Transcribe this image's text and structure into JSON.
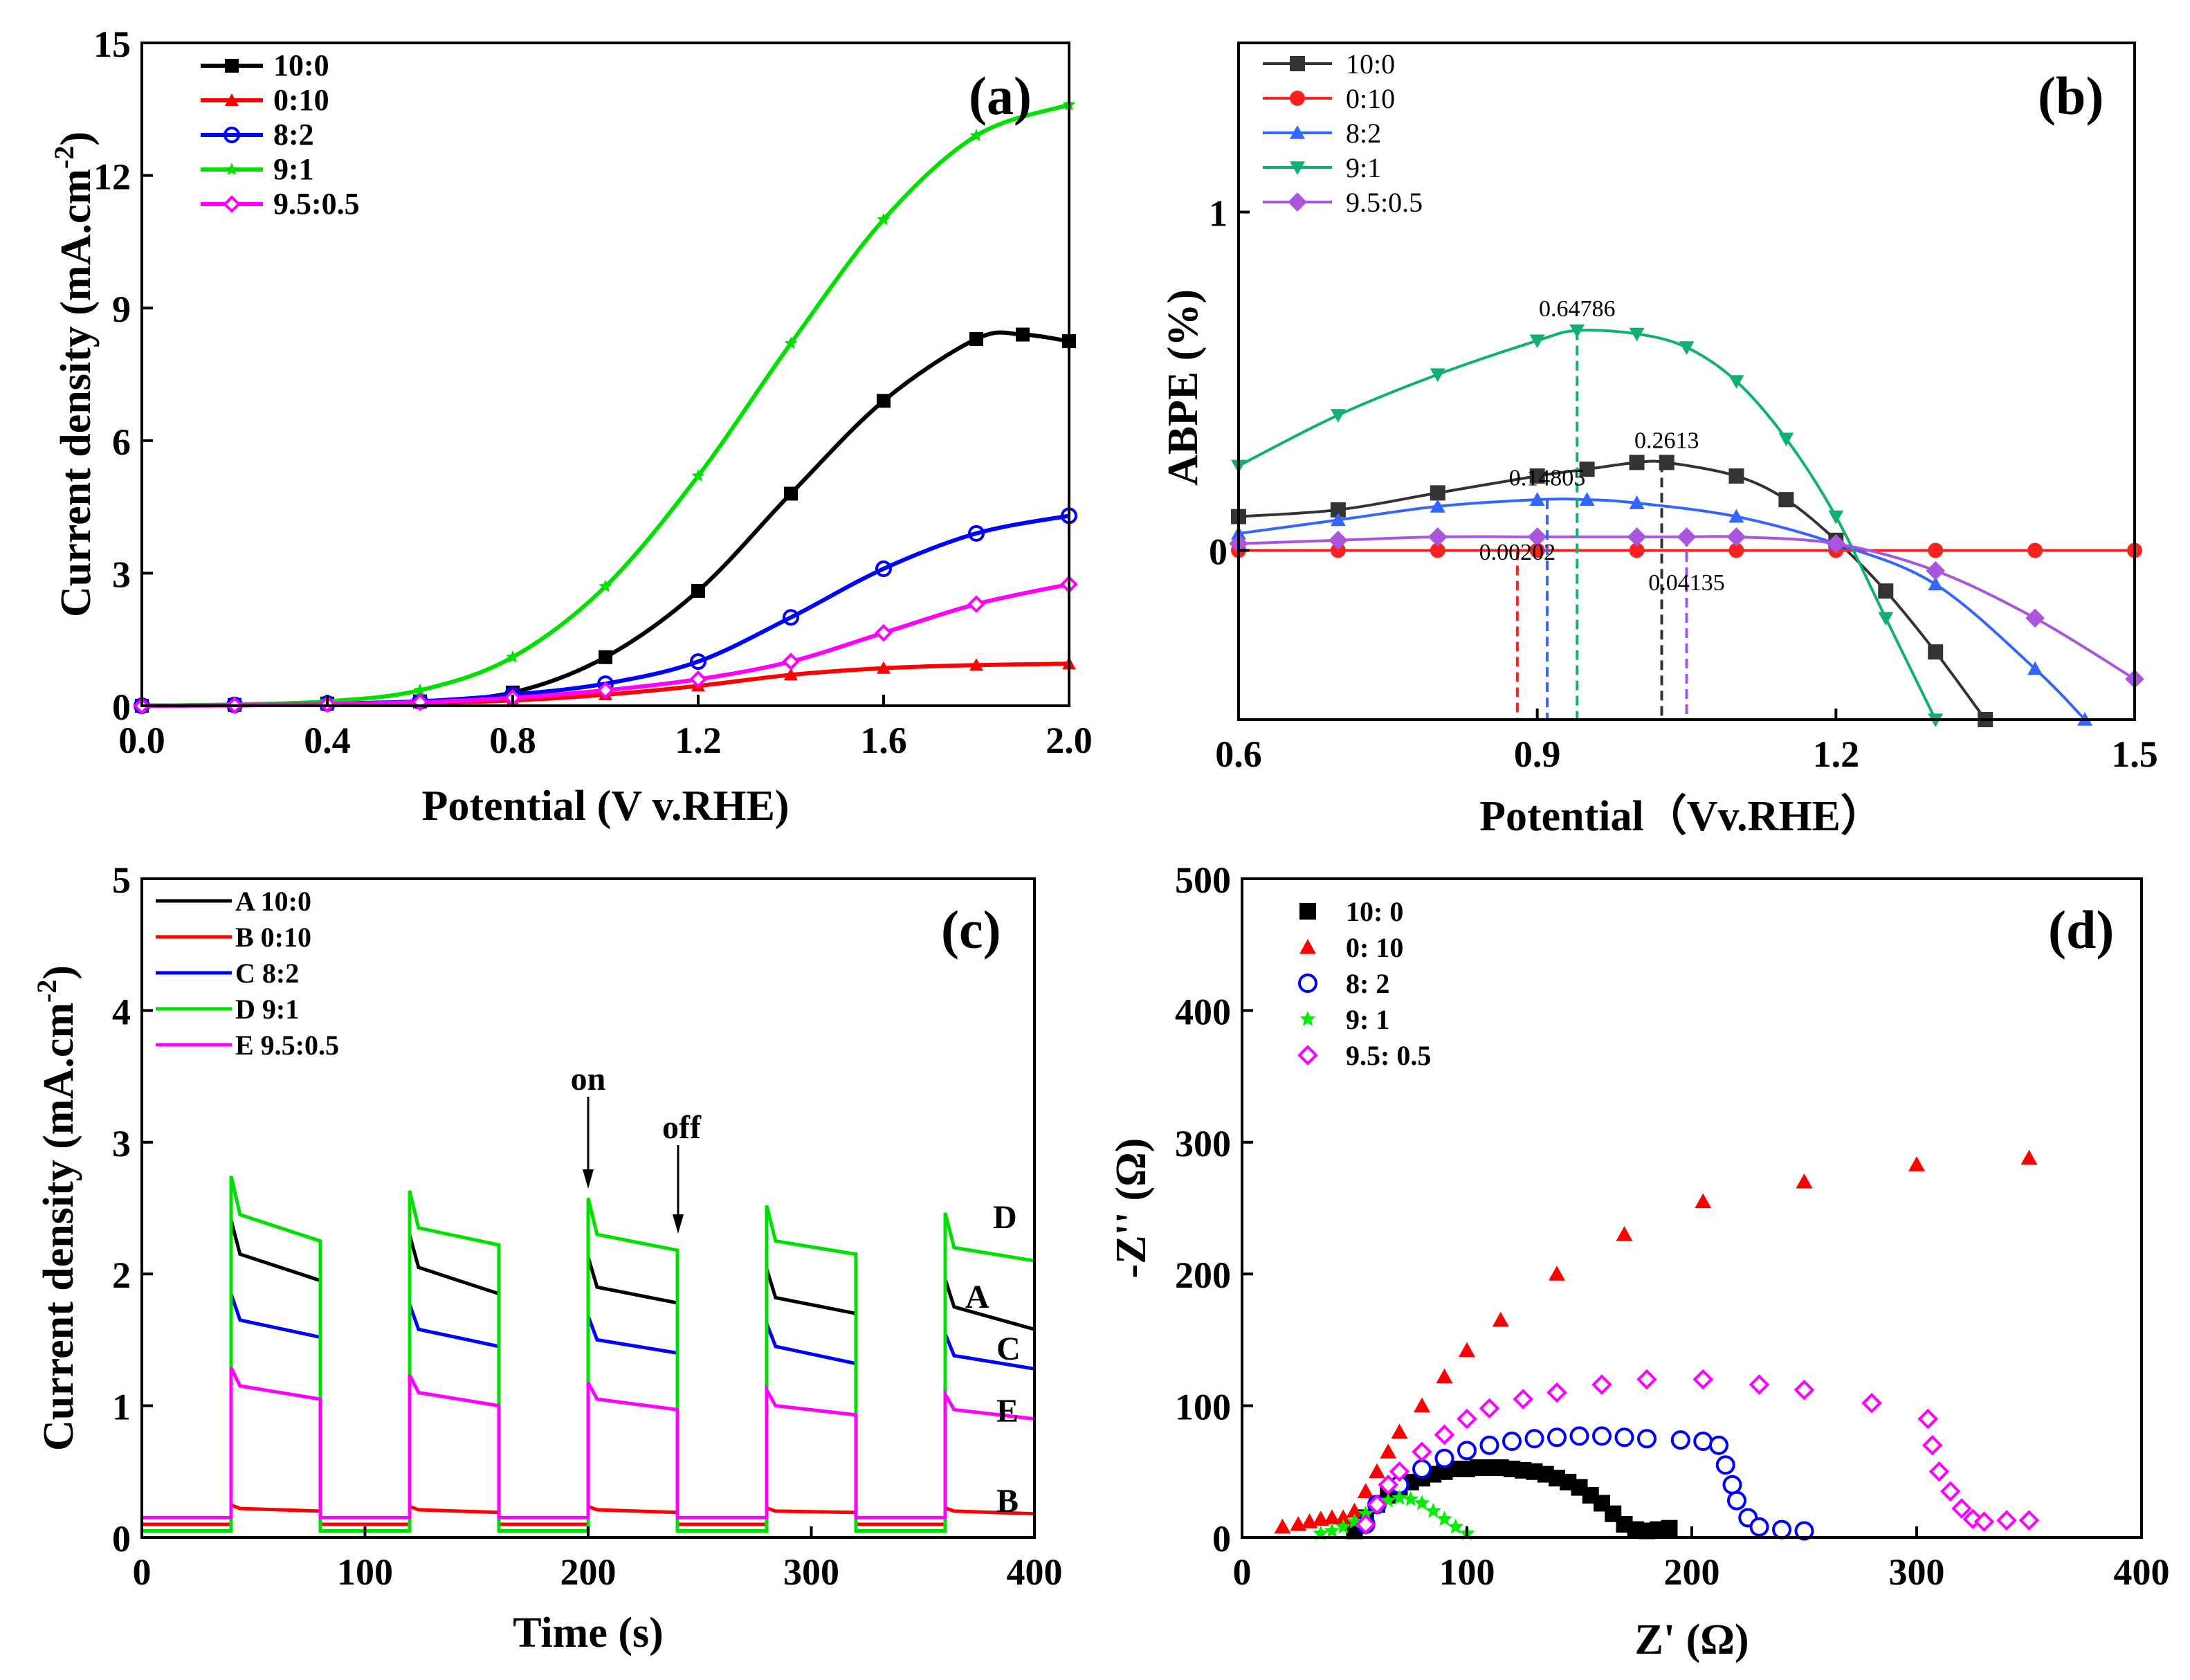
{
  "chart_data": [
    {
      "type": "line",
      "panel": "(a)",
      "xlabel": "Potential (V v.RHE)",
      "ylabel": "Current density (mA.cm",
      "ylabel_sup": "-2",
      "ylabel_close": ")",
      "xlim": [
        0,
        2.0
      ],
      "ylim": [
        0,
        15
      ],
      "xticks": [
        "0.0",
        "0.4",
        "0.8",
        "1.2",
        "1.6",
        "2.0"
      ],
      "yticks": [
        "0",
        "3",
        "6",
        "9",
        "12",
        "15"
      ],
      "series": [
        {
          "name": "10:0",
          "color": "#000000",
          "marker": "square",
          "x": [
            0,
            0.2,
            0.4,
            0.6,
            0.8,
            1.0,
            1.2,
            1.4,
            1.6,
            1.8,
            1.9,
            2.0
          ],
          "y": [
            0,
            0.02,
            0.05,
            0.1,
            0.3,
            1.1,
            2.6,
            4.8,
            6.9,
            8.3,
            8.4,
            8.25
          ]
        },
        {
          "name": "0:10",
          "color": "#ff0000",
          "marker": "triangle",
          "x": [
            0,
            0.2,
            0.4,
            0.6,
            0.8,
            1.0,
            1.2,
            1.4,
            1.6,
            1.8,
            2.0
          ],
          "y": [
            0,
            0.01,
            0.03,
            0.06,
            0.12,
            0.25,
            0.45,
            0.7,
            0.85,
            0.92,
            0.95
          ]
        },
        {
          "name": "8:2",
          "color": "#0000ff",
          "marker": "circle-open",
          "x": [
            0,
            0.2,
            0.4,
            0.6,
            0.8,
            1.0,
            1.2,
            1.4,
            1.6,
            1.8,
            2.0
          ],
          "y": [
            0,
            0.02,
            0.05,
            0.1,
            0.25,
            0.5,
            1.0,
            2.0,
            3.1,
            3.9,
            4.3
          ]
        },
        {
          "name": "9:1",
          "color": "#00e000",
          "marker": "star",
          "x": [
            0,
            0.2,
            0.4,
            0.6,
            0.8,
            1.0,
            1.2,
            1.4,
            1.6,
            1.8,
            2.0
          ],
          "y": [
            0,
            0.03,
            0.1,
            0.35,
            1.1,
            2.7,
            5.2,
            8.2,
            11.0,
            12.9,
            13.6
          ]
        },
        {
          "name": "9.5:0.5",
          "color": "#ff00ff",
          "marker": "diamond-half",
          "x": [
            0,
            0.2,
            0.4,
            0.6,
            0.8,
            1.0,
            1.2,
            1.4,
            1.6,
            1.8,
            2.0
          ],
          "y": [
            0,
            0.01,
            0.04,
            0.08,
            0.18,
            0.35,
            0.6,
            1.0,
            1.65,
            2.3,
            2.75
          ]
        }
      ]
    },
    {
      "type": "line",
      "panel": "(b)",
      "xlabel": "Potential（Vv.RHE）",
      "ylabel": "ABPE (%)",
      "xlim": [
        0.6,
        1.5
      ],
      "ylim": [
        -0.5,
        1.5
      ],
      "xticks": [
        "0.6",
        "0.9",
        "1.2",
        "1.5"
      ],
      "yticks": [
        "0",
        "1"
      ],
      "annotations": [
        {
          "text": "0.64786",
          "x": 0.94,
          "y": 0.66
        },
        {
          "text": "0.2613",
          "x": 1.03,
          "y": 0.27
        },
        {
          "text": "0.14805",
          "x": 0.91,
          "y": 0.16
        },
        {
          "text": "0.00202",
          "x": 0.88,
          "y": -0.06
        },
        {
          "text": "0.04135",
          "x": 1.05,
          "y": -0.15
        }
      ],
      "series": [
        {
          "name": "10:0",
          "color": "#333333",
          "marker": "square",
          "x": [
            0.6,
            0.7,
            0.8,
            0.9,
            0.95,
            1.0,
            1.03,
            1.1,
            1.15,
            1.2,
            1.25,
            1.3,
            1.35
          ],
          "y": [
            0.1,
            0.12,
            0.17,
            0.22,
            0.24,
            0.26,
            0.26,
            0.22,
            0.15,
            0.03,
            -0.12,
            -0.3,
            -0.5
          ]
        },
        {
          "name": "0:10",
          "color": "#ff2020",
          "marker": "circle",
          "x": [
            0.6,
            0.7,
            0.8,
            0.9,
            1.0,
            1.1,
            1.2,
            1.3,
            1.4,
            1.5
          ],
          "y": [
            0,
            0,
            0,
            0,
            0,
            0,
            0,
            0,
            0,
            0
          ]
        },
        {
          "name": "8:2",
          "color": "#3366ff",
          "marker": "triangle",
          "x": [
            0.6,
            0.7,
            0.8,
            0.9,
            0.95,
            1.0,
            1.1,
            1.2,
            1.3,
            1.4,
            1.45
          ],
          "y": [
            0.05,
            0.09,
            0.13,
            0.15,
            0.15,
            0.14,
            0.1,
            0.02,
            -0.1,
            -0.35,
            -0.5
          ]
        },
        {
          "name": "9:1",
          "color": "#10b070",
          "marker": "triangle-down",
          "x": [
            0.6,
            0.7,
            0.8,
            0.9,
            0.94,
            1.0,
            1.05,
            1.1,
            1.15,
            1.2,
            1.25,
            1.3
          ],
          "y": [
            0.25,
            0.4,
            0.52,
            0.62,
            0.65,
            0.64,
            0.6,
            0.5,
            0.33,
            0.1,
            -0.2,
            -0.5
          ]
        },
        {
          "name": "9.5:0.5",
          "color": "#aa55dd",
          "marker": "diamond",
          "x": [
            0.6,
            0.7,
            0.8,
            0.9,
            1.0,
            1.05,
            1.1,
            1.2,
            1.3,
            1.4,
            1.5
          ],
          "y": [
            0.02,
            0.03,
            0.04,
            0.04,
            0.04,
            0.04,
            0.04,
            0.02,
            -0.06,
            -0.2,
            -0.38
          ]
        }
      ]
    },
    {
      "type": "line",
      "panel": "(c)",
      "xlabel": "Time (s)",
      "ylabel": "Current density (mA.cm",
      "ylabel_sup": "-2",
      "ylabel_close": ")",
      "xlim": [
        0,
        400
      ],
      "ylim": [
        0,
        5
      ],
      "xticks": [
        "0",
        "100",
        "200",
        "300",
        "400"
      ],
      "yticks": [
        "0",
        "1",
        "2",
        "3",
        "4",
        "5"
      ],
      "on_label": "on",
      "off_label": "off",
      "curve_labels": [
        "D",
        "A",
        "C",
        "E",
        "B"
      ],
      "light_on": [
        [
          40,
          80
        ],
        [
          120,
          160
        ],
        [
          200,
          240
        ],
        [
          280,
          320
        ],
        [
          360,
          400
        ]
      ],
      "series": [
        {
          "name": "A 10:0",
          "color": "#000000",
          "dark": 0.05,
          "on_levels": [
            [
              2.15,
              1.95
            ],
            [
              2.05,
              1.85
            ],
            [
              1.9,
              1.78
            ],
            [
              1.82,
              1.7
            ],
            [
              1.75,
              1.58
            ]
          ]
        },
        {
          "name": "B 0:10",
          "color": "#ff0000",
          "dark": 0.1,
          "on_levels": [
            [
              0.22,
              0.2
            ],
            [
              0.21,
              0.19
            ],
            [
              0.21,
              0.19
            ],
            [
              0.2,
              0.19
            ],
            [
              0.2,
              0.18
            ]
          ]
        },
        {
          "name": "C 8:2",
          "color": "#0000ff",
          "dark": 0.05,
          "on_levels": [
            [
              1.65,
              1.52
            ],
            [
              1.58,
              1.45
            ],
            [
              1.5,
              1.4
            ],
            [
              1.45,
              1.32
            ],
            [
              1.38,
              1.28
            ]
          ]
        },
        {
          "name": "D 9:1",
          "color": "#00e000",
          "dark": 0.05,
          "on_levels": [
            [
              2.45,
              2.25
            ],
            [
              2.35,
              2.22
            ],
            [
              2.3,
              2.18
            ],
            [
              2.25,
              2.15
            ],
            [
              2.2,
              2.1
            ]
          ]
        },
        {
          "name": "E 9.5:0.5",
          "color": "#ff00ff",
          "dark": 0.15,
          "on_levels": [
            [
              1.15,
              1.05
            ],
            [
              1.1,
              1.0
            ],
            [
              1.05,
              0.97
            ],
            [
              1.0,
              0.93
            ],
            [
              0.97,
              0.9
            ]
          ]
        }
      ]
    },
    {
      "type": "scatter",
      "panel": "(d)",
      "xlabel": "Z' (Ω)",
      "ylabel": "-Z'' (Ω)",
      "xlim": [
        0,
        400
      ],
      "ylim": [
        0,
        500
      ],
      "xticks": [
        "0",
        "100",
        "200",
        "300",
        "400"
      ],
      "yticks": [
        "0",
        "100",
        "200",
        "300",
        "400",
        "500"
      ],
      "series": [
        {
          "name": "10:  0",
          "color": "#000000",
          "marker": "square",
          "x": [
            50,
            55,
            60,
            65,
            70,
            75,
            80,
            85,
            90,
            95,
            100,
            105,
            110,
            115,
            120,
            125,
            130,
            135,
            140,
            145,
            150,
            155,
            160,
            165,
            170,
            175,
            180,
            185,
            190
          ],
          "y": [
            5,
            15,
            25,
            32,
            38,
            42,
            45,
            48,
            50,
            52,
            52,
            53,
            53,
            53,
            52,
            51,
            50,
            48,
            45,
            42,
            38,
            32,
            26,
            18,
            10,
            6,
            5,
            6,
            7
          ]
        },
        {
          "name": "0:  10",
          "color": "#ff0000",
          "marker": "triangle",
          "x": [
            18,
            25,
            30,
            35,
            40,
            45,
            50,
            55,
            60,
            65,
            70,
            80,
            90,
            100,
            115,
            140,
            170,
            205,
            250,
            300,
            350
          ],
          "y": [
            8,
            10,
            12,
            14,
            15,
            15,
            20,
            35,
            50,
            65,
            80,
            100,
            122,
            142,
            165,
            200,
            230,
            255,
            270,
            283,
            288
          ]
        },
        {
          "name": "8:  2",
          "color": "#0000ff",
          "marker": "circle-half",
          "x": [
            55,
            60,
            70,
            80,
            90,
            100,
            110,
            120,
            130,
            140,
            150,
            160,
            170,
            180,
            195,
            205,
            212,
            215,
            218,
            220,
            225,
            230,
            240,
            250
          ],
          "y": [
            10,
            25,
            40,
            52,
            60,
            66,
            70,
            73,
            75,
            76,
            77,
            77,
            76,
            75,
            74,
            73,
            70,
            55,
            40,
            28,
            15,
            8,
            6,
            5
          ]
        },
        {
          "name": "9:  1",
          "color": "#00ee00",
          "marker": "star",
          "x": [
            35,
            40,
            45,
            50,
            55,
            60,
            65,
            70,
            75,
            80,
            85,
            90,
            95,
            100
          ],
          "y": [
            3,
            5,
            8,
            12,
            18,
            24,
            28,
            30,
            29,
            26,
            20,
            14,
            8,
            3
          ]
        },
        {
          "name": "9.5:  0.5",
          "color": "#ff00ff",
          "marker": "diamond-half",
          "x": [
            55,
            60,
            65,
            70,
            80,
            90,
            100,
            110,
            125,
            140,
            160,
            180,
            205,
            230,
            250,
            280,
            305,
            307,
            310,
            315,
            320,
            325,
            330,
            340,
            350
          ],
          "y": [
            10,
            25,
            40,
            50,
            65,
            78,
            90,
            98,
            105,
            110,
            116,
            120,
            120,
            116,
            112,
            102,
            90,
            70,
            50,
            35,
            22,
            14,
            12,
            13,
            13
          ]
        }
      ]
    }
  ]
}
